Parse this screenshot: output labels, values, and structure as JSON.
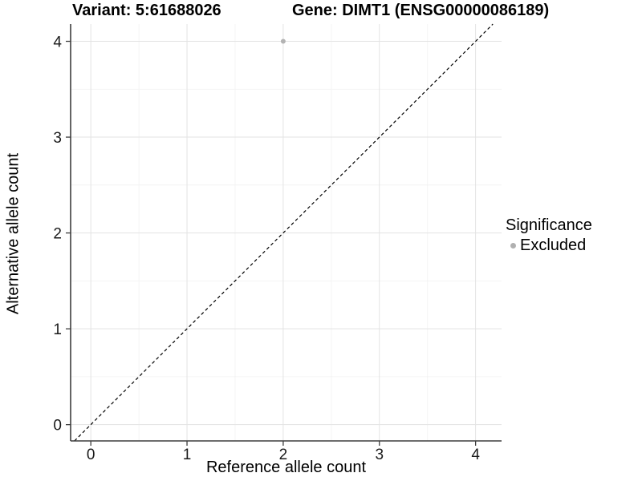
{
  "header": {
    "variant_title": "Variant: 5:61688026",
    "gene_title": "Gene: DIMT1 (ENSG00000086189)"
  },
  "chart_data": {
    "type": "scatter",
    "title_left": "Variant: 5:61688026",
    "title_right": "Gene: DIMT1 (ENSG00000086189)",
    "xlabel": "Reference allele count",
    "ylabel": "Alternative allele count",
    "xlim": [
      -0.21,
      4.27
    ],
    "ylim": [
      -0.17,
      4.18
    ],
    "xticks": [
      0,
      1,
      2,
      3,
      4
    ],
    "yticks": [
      0,
      1,
      2,
      3,
      4
    ],
    "minor_step": 0.5,
    "grid": "major+minor",
    "series": [
      {
        "name": "Excluded",
        "points": [
          {
            "x": 2,
            "y": 4
          }
        ]
      }
    ],
    "reference_line": {
      "kind": "identity",
      "style": "dashed",
      "color": "#000000"
    },
    "legend": {
      "position": "right",
      "title": "Significance",
      "entries": [
        {
          "label": "Excluded",
          "color": "#b0b0b0"
        }
      ]
    },
    "colors": {
      "point": "#b3b3b3",
      "grid_major": "#e3e3e3",
      "grid_minor": "#f1f1f1",
      "axis_line": "#3d3d3d",
      "tick_text": "#1a1a1a",
      "background": "#ffffff"
    }
  }
}
